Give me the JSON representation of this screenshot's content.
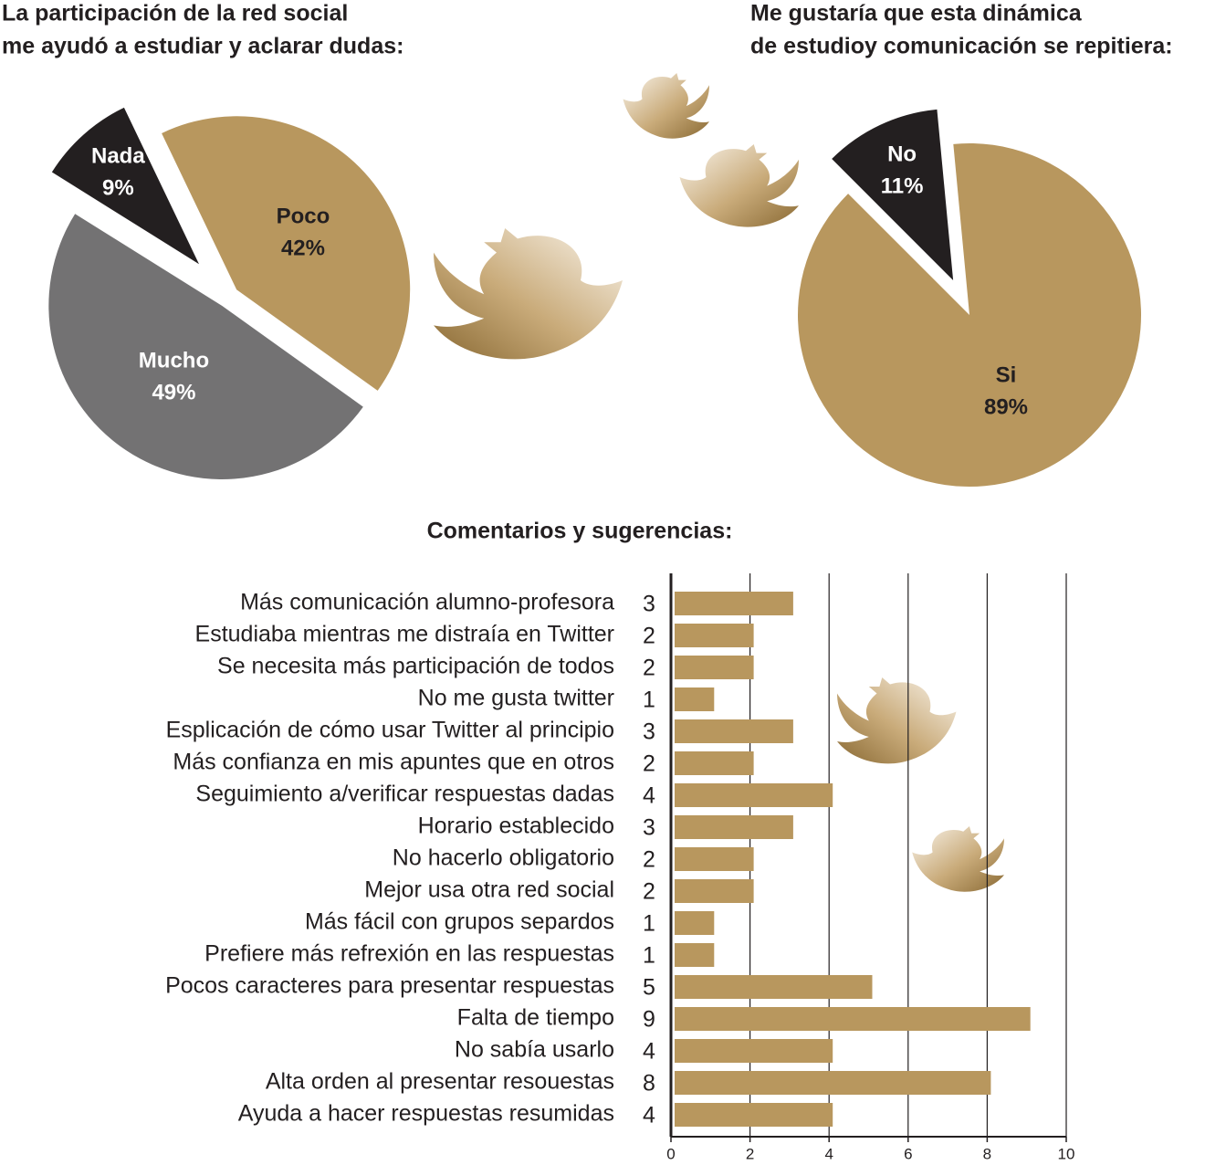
{
  "chart_data": [
    {
      "type": "pie",
      "title": [
        "La participación de la red social",
        "me ayudó a estudiar y aclarar dudas:"
      ],
      "categories": [
        "Nada",
        "Poco",
        "Mucho"
      ],
      "values": [
        9,
        42,
        49
      ],
      "value_labels": [
        "9%",
        "42%",
        "49%"
      ],
      "colors": [
        "#231f20",
        "#b8975e",
        "#737273"
      ]
    },
    {
      "type": "pie",
      "title": [
        "Me gustaría que esta dinámica",
        "de estudioy comunicación se repitiera:"
      ],
      "categories": [
        "No",
        "Si"
      ],
      "values": [
        11,
        89
      ],
      "value_labels": [
        "11%",
        "89%"
      ],
      "colors": [
        "#231f20",
        "#b8975e"
      ]
    },
    {
      "type": "hbar",
      "title": "Comentarios y sugerencias:",
      "categories": [
        "Más comunicación alumno-profesora",
        "Estudiaba mientras me distraía en Twitter",
        "Se necesita más participación de todos",
        "No me gusta twitter",
        "Esplicación de cómo usar Twitter al principio",
        "Más confianza en mis apuntes que en otros",
        "Seguimiento a/verificar respuestas dadas",
        "Horario establecido",
        "No hacerlo obligatorio",
        "Mejor usa otra red social",
        "Más fácil con grupos separdos",
        "Prefiere más refrexión en las respuestas",
        "Pocos caracteres para presentar respuestas",
        "Falta de tiempo",
        "No sabía usarlo",
        "Alta orden al presentar resouestas",
        "Ayuda a hacer respuestas resumidas"
      ],
      "values": [
        3,
        2,
        2,
        1,
        3,
        2,
        4,
        3,
        2,
        2,
        1,
        1,
        5,
        9,
        4,
        8,
        4
      ],
      "color": "#b8975e",
      "xlim": [
        0,
        10
      ],
      "xticks": [
        0,
        2,
        4,
        6,
        8,
        10
      ],
      "grid": true
    }
  ]
}
